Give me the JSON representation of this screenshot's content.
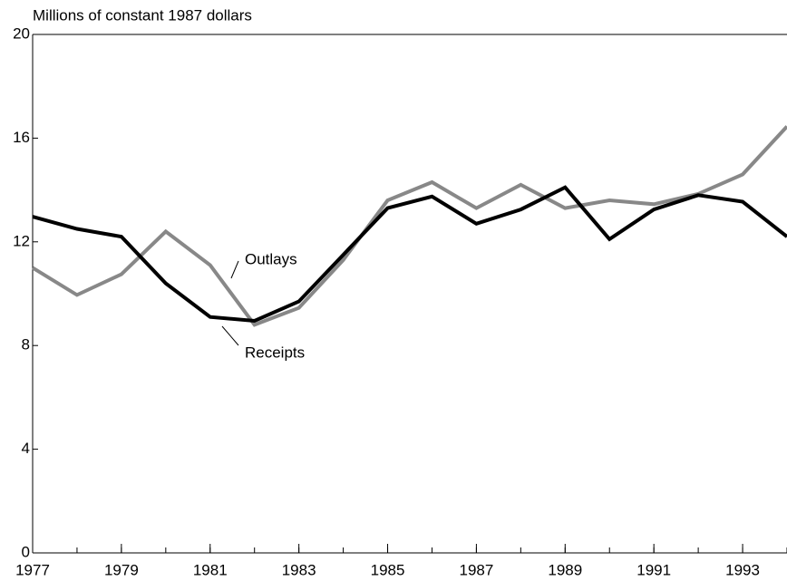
{
  "chart_data": {
    "type": "line",
    "y_axis_label": "Millions of constant 1987 dollars",
    "x": [
      1977,
      1978,
      1979,
      1980,
      1981,
      1982,
      1983,
      1984,
      1985,
      1986,
      1987,
      1988,
      1989,
      1990,
      1991,
      1992,
      1993,
      1994
    ],
    "series": [
      {
        "name": "Outlays",
        "color": "#888888",
        "values": [
          11.0,
          9.95,
          10.75,
          12.4,
          11.1,
          8.8,
          9.45,
          11.3,
          13.6,
          14.3,
          13.3,
          14.2,
          13.3,
          13.6,
          13.45,
          13.85,
          14.6,
          16.45
        ]
      },
      {
        "name": "Receipts",
        "color": "#000000",
        "values": [
          12.97,
          12.5,
          12.2,
          10.4,
          9.1,
          8.95,
          9.7,
          11.5,
          13.3,
          13.75,
          12.7,
          13.25,
          14.1,
          12.1,
          13.25,
          13.8,
          13.55,
          12.2
        ]
      }
    ],
    "xlim": [
      1977,
      1994
    ],
    "xticks": [
      1977,
      1979,
      1981,
      1983,
      1985,
      1987,
      1989,
      1991,
      1993
    ],
    "ylim": [
      0,
      20
    ],
    "yticks": [
      0,
      4,
      8,
      12,
      16,
      20
    ],
    "grid": false
  }
}
